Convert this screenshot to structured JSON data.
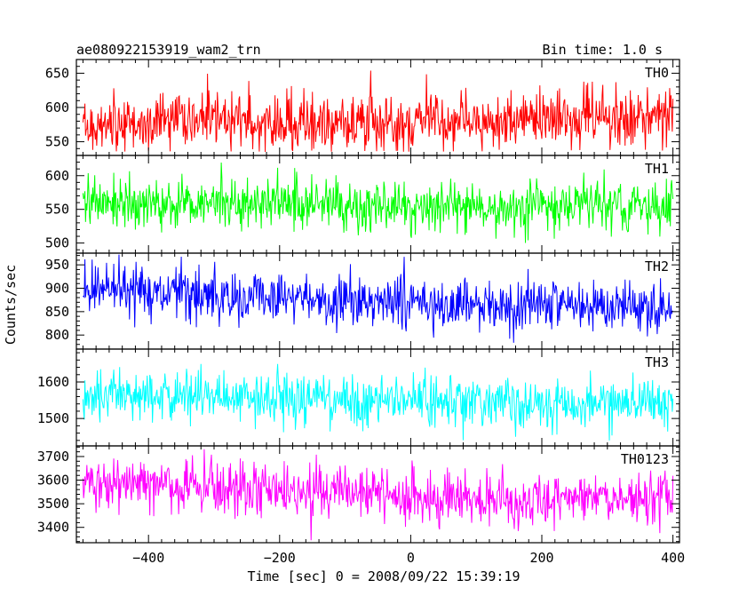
{
  "chart_data": {
    "type": "line",
    "title": "ae080922153919_wam2_trn",
    "subtitle": "Bin time: 1.0 s",
    "xlabel": "Time [sec] 0 = 2008/09/22 15:39:19",
    "ylabel": "Counts/sec",
    "xlim": [
      -510,
      410
    ],
    "x_ticks": [
      -400,
      -200,
      0,
      200,
      400
    ],
    "x_tick_labels": [
      "−400",
      "−200",
      "0",
      "200",
      "400"
    ],
    "x_data_range": [
      -500,
      400
    ],
    "bin_time_s": 1.0,
    "grid": false,
    "legend": "none",
    "panels": [
      {
        "name": "TH0",
        "color": "#ff0000",
        "ylim": [
          530,
          670
        ],
        "y_ticks": [
          550,
          600,
          650
        ],
        "y_tick_labels": [
          "550",
          "600",
          "650"
        ],
        "mean": 580,
        "spread": 21,
        "trend": [
          [
            -500,
            572
          ],
          [
            -300,
            582
          ],
          [
            -100,
            577
          ],
          [
            100,
            580
          ],
          [
            300,
            585
          ],
          [
            400,
            582
          ]
        ],
        "observed_range": [
          535,
          668
        ]
      },
      {
        "name": "TH1",
        "color": "#00ff00",
        "ylim": [
          485,
          630
        ],
        "y_ticks": [
          500,
          550,
          600
        ],
        "y_tick_labels": [
          "500",
          "550",
          "600"
        ],
        "mean": 558,
        "spread": 19,
        "trend": [
          [
            -500,
            560
          ],
          [
            -300,
            560
          ],
          [
            -100,
            557
          ],
          [
            100,
            555
          ],
          [
            300,
            556
          ],
          [
            400,
            556
          ]
        ],
        "observed_range": [
          488,
          628
        ]
      },
      {
        "name": "TH2",
        "color": "#0000ff",
        "ylim": [
          770,
          975
        ],
        "y_ticks": [
          800,
          850,
          900,
          950
        ],
        "y_tick_labels": [
          "800",
          "850",
          "900",
          "950"
        ],
        "mean": 868,
        "spread": 27,
        "trend": [
          [
            -500,
            895
          ],
          [
            -300,
            888
          ],
          [
            -100,
            870
          ],
          [
            100,
            862
          ],
          [
            300,
            858
          ],
          [
            400,
            858
          ]
        ],
        "observed_range": [
          772,
          972
        ]
      },
      {
        "name": "TH3",
        "color": "#00ffff",
        "ylim": [
          1425,
          1690
        ],
        "y_ticks": [
          1500,
          1600
        ],
        "y_tick_labels": [
          "1500",
          "1600"
        ],
        "mean": 1553,
        "spread": 34,
        "trend": [
          [
            -500,
            1565
          ],
          [
            -300,
            1558
          ],
          [
            -100,
            1552
          ],
          [
            100,
            1545
          ],
          [
            300,
            1545
          ],
          [
            400,
            1545
          ]
        ],
        "observed_range": [
          1438,
          1685
        ]
      },
      {
        "name": "TH0123",
        "color": "#ff00ff",
        "ylim": [
          3335,
          3745
        ],
        "y_ticks": [
          3400,
          3500,
          3600,
          3700
        ],
        "y_tick_labels": [
          "3400",
          "3500",
          "3600",
          "3700"
        ],
        "mean": 3545,
        "spread": 55,
        "trend": [
          [
            -500,
            3585
          ],
          [
            -300,
            3575
          ],
          [
            -100,
            3550
          ],
          [
            100,
            3525
          ],
          [
            300,
            3525
          ],
          [
            400,
            3525
          ]
        ],
        "observed_range": [
          3345,
          3740
        ]
      }
    ]
  }
}
